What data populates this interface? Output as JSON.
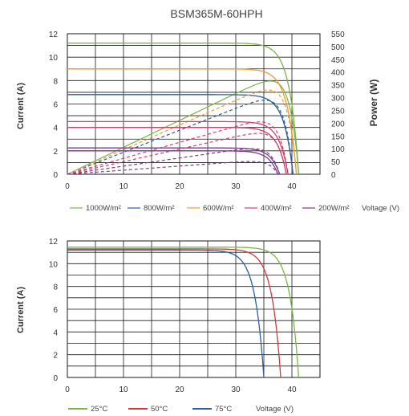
{
  "title": "BSM365M-60HPH",
  "chart_data": [
    {
      "type": "line",
      "title": "BSM365M-60HPH",
      "ylabel": "Current (A)",
      "y2label": "Power (W)",
      "xlabel": "Voltage (V)",
      "xlim": [
        0,
        45
      ],
      "ylim": [
        0,
        12
      ],
      "y2lim": [
        0,
        550
      ],
      "x_ticks": [
        "0",
        "10",
        "20",
        "30",
        "40"
      ],
      "y_ticks": [
        "0",
        "2",
        "4",
        "6",
        "8",
        "10",
        "12"
      ],
      "y2_ticks": [
        "0",
        "50",
        "100",
        "150",
        "200",
        "250",
        "300",
        "350",
        "400",
        "450",
        "500",
        "550"
      ],
      "grid": true,
      "legend_position": "bottom",
      "series": [
        {
          "name": "1000W/m²",
          "color": "#7ab648",
          "isc": 11.2,
          "voc": 41.2,
          "pmax": 365
        },
        {
          "name": "800W/m²",
          "color": "#2b5f9e",
          "isc": 6.8,
          "voc": 40.2,
          "pmax": 290
        },
        {
          "name": "600W/m²",
          "color": "#f39a2b",
          "isc": 9.0,
          "voc": 40.8,
          "pmax": 330
        },
        {
          "name": "400W/m²",
          "color": "#d33e6a",
          "isc": 4.5,
          "voc": 39.3,
          "pmax": 205
        },
        {
          "name": "200W/m²",
          "color": "#7a3c8e",
          "isc": 2.25,
          "voc": 37.8,
          "pmax": 100
        }
      ],
      "extra_curves": [
        {
          "color": "#d33e6a",
          "isc": 4.0,
          "voc": 39.0,
          "pmax": 160
        },
        {
          "color": "#7a3c8e",
          "isc": 2.0,
          "voc": 37.5,
          "pmax": 50
        }
      ]
    },
    {
      "type": "line",
      "ylabel": "Current (A)",
      "xlabel": "Voltage (V)",
      "xlim": [
        0,
        45
      ],
      "ylim": [
        0,
        12
      ],
      "x_ticks": [
        "0",
        "10",
        "20",
        "30",
        "40"
      ],
      "y_ticks": [
        "0",
        "2",
        "4",
        "6",
        "8",
        "10",
        "12"
      ],
      "grid": true,
      "legend_position": "bottom",
      "series": [
        {
          "name": "25°C",
          "color": "#7ab648",
          "isc": 11.45,
          "voc": 41.2
        },
        {
          "name": "50°C",
          "color": "#d13b3b",
          "isc": 11.3,
          "voc": 38.0
        },
        {
          "name": "75°C",
          "color": "#2b5f9e",
          "isc": 11.2,
          "voc": 35.0
        }
      ]
    }
  ]
}
